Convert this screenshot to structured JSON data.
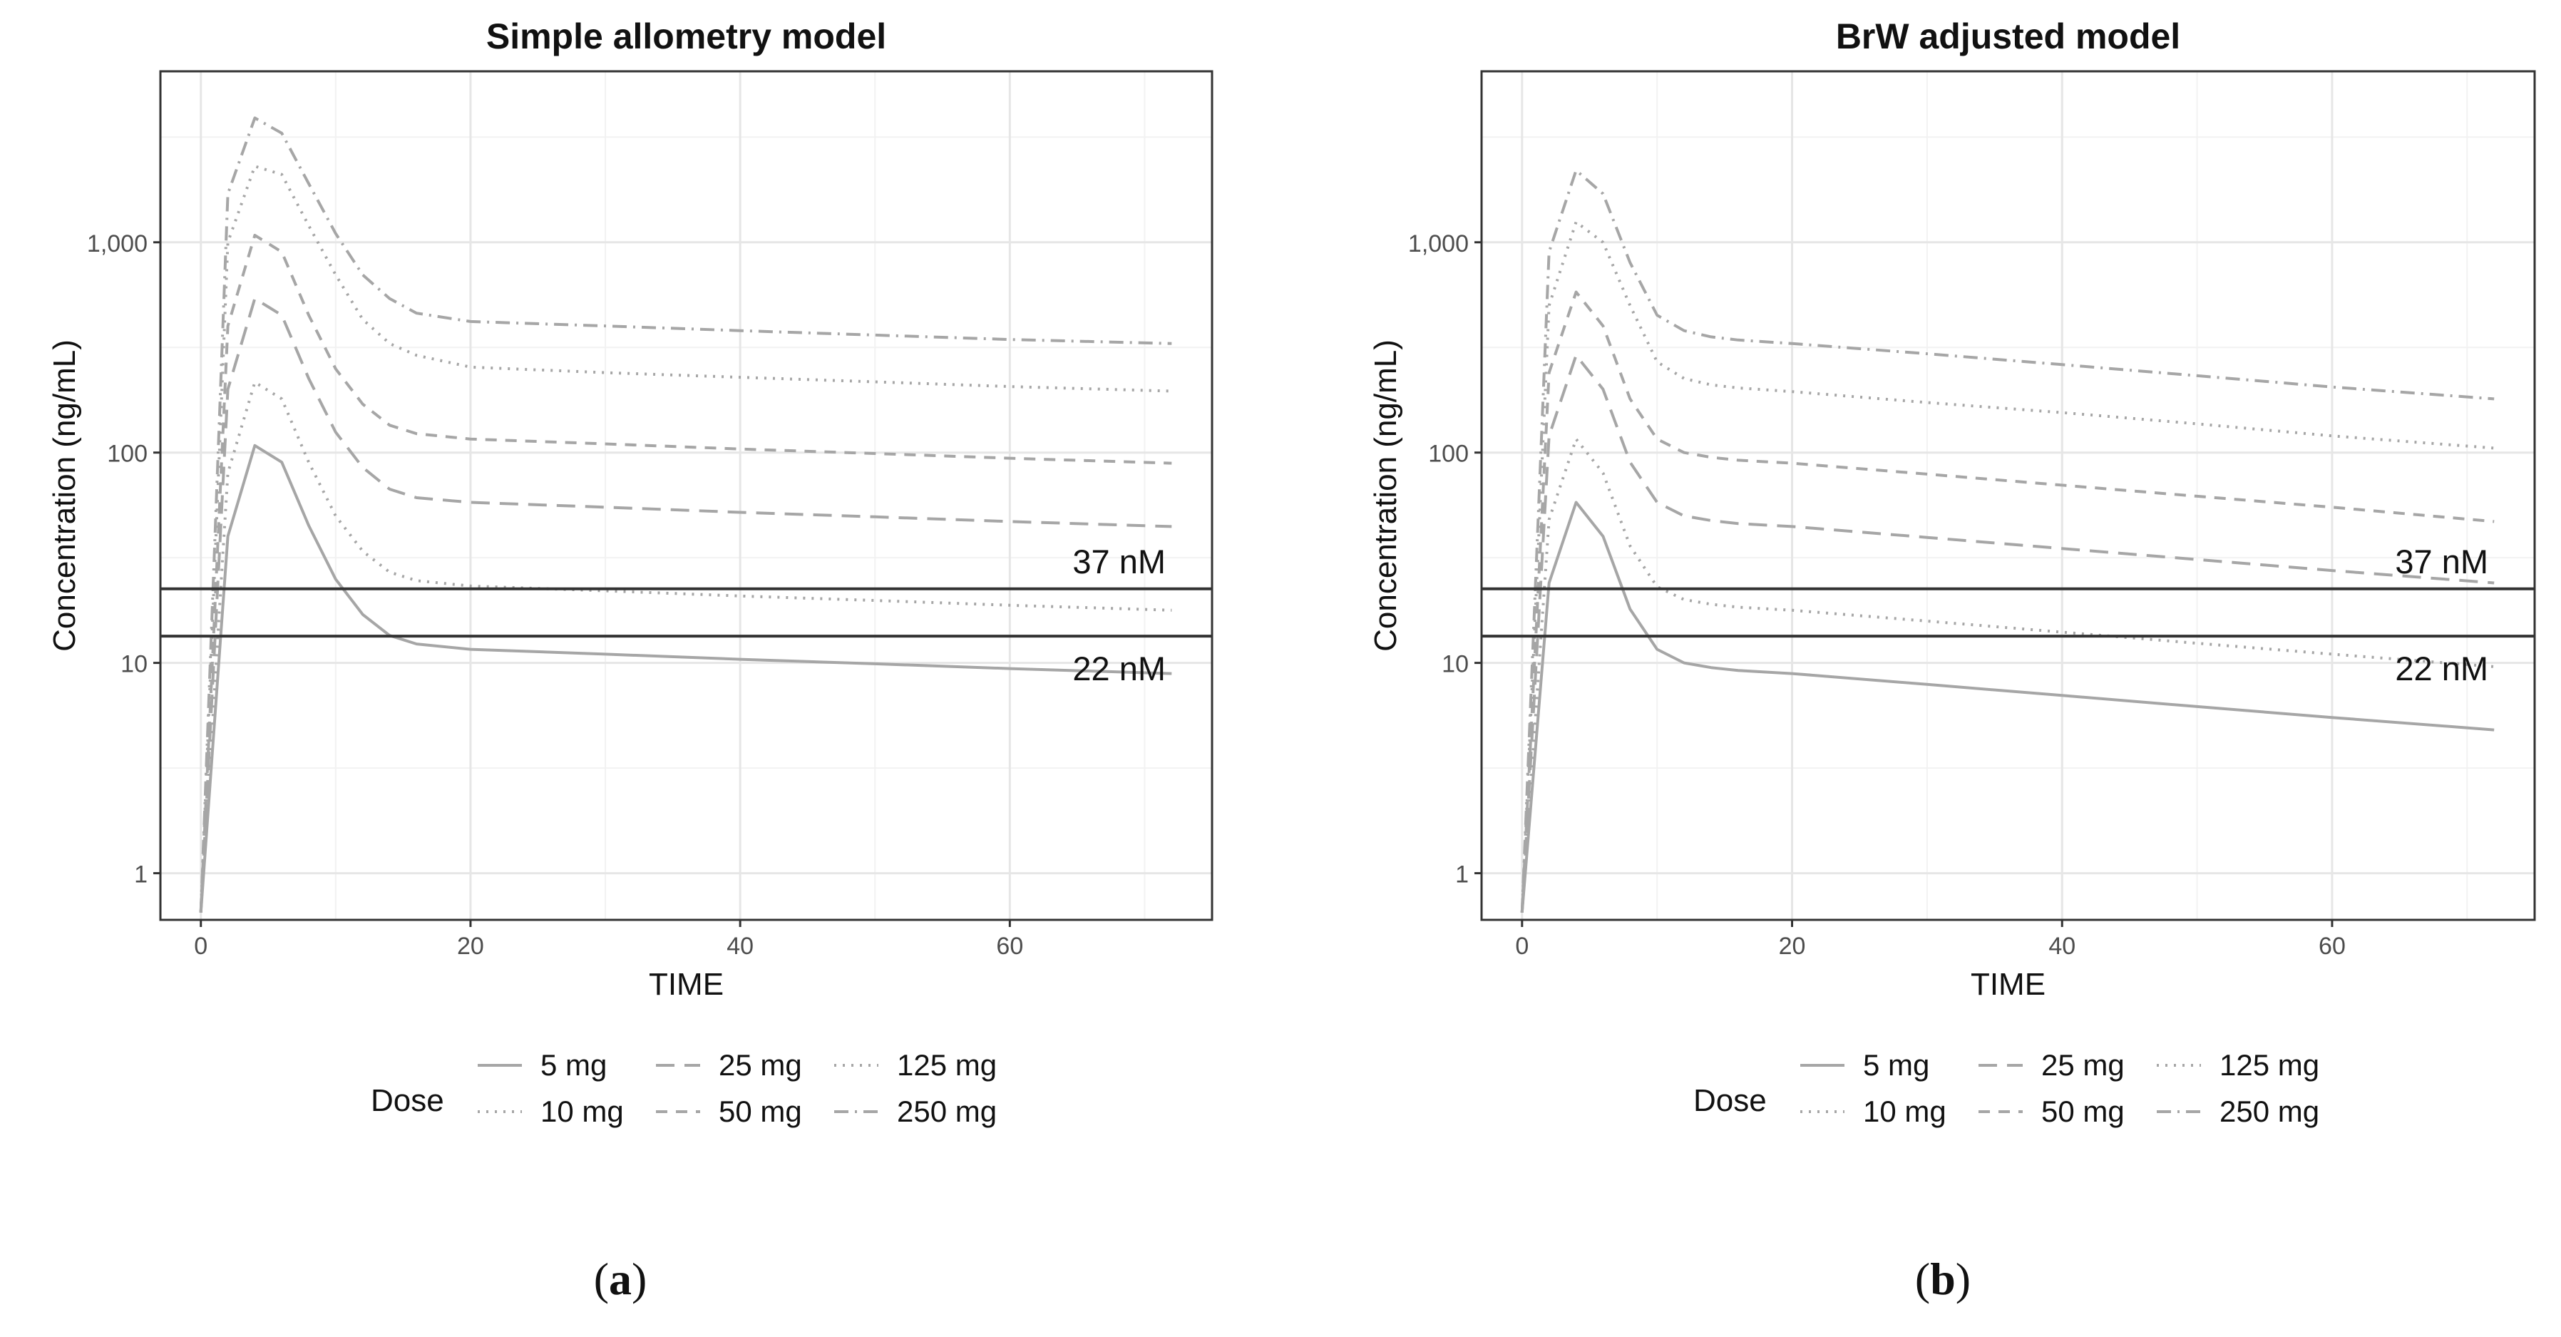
{
  "chart_data": [
    {
      "type": "line",
      "title": "Simple allometry model",
      "panel_label": [
        "(",
        "a",
        ")"
      ],
      "xlabel": "TIME",
      "ylabel": "Concentration (ng/mL)",
      "xlim": [
        -3,
        75
      ],
      "xticks": [
        0,
        20,
        40,
        60
      ],
      "xtick_labels": [
        "0",
        "20",
        "40",
        "60"
      ],
      "yscale": "log",
      "ylim": [
        0.6,
        6500
      ],
      "yticks": [
        1,
        10,
        100,
        1000
      ],
      "ytick_labels": [
        "1",
        "10",
        "100",
        "1,000"
      ],
      "grid": true,
      "reference_lines": [
        {
          "value": 22.5,
          "label": "37 nM"
        },
        {
          "value": 13.4,
          "label": "22 nM"
        }
      ],
      "legend": {
        "title": "Dose",
        "position": "bottom",
        "entries": [
          "5 mg",
          "10 mg",
          "25 mg",
          "50 mg",
          "125 mg",
          "250 mg"
        ]
      },
      "series": [
        {
          "name": "5 mg",
          "line": "solid",
          "x": [
            0,
            2,
            4,
            6,
            8,
            10,
            12,
            14,
            16,
            20,
            30,
            40,
            50,
            60,
            72
          ],
          "y": [
            0.65,
            40,
            108,
            90,
            45,
            25,
            17,
            13.5,
            12.3,
            11.6,
            11,
            10.4,
            9.9,
            9.4,
            8.9
          ]
        },
        {
          "name": "10 mg",
          "line": "dotted",
          "x": [
            0,
            2,
            4,
            6,
            8,
            10,
            12,
            14,
            16,
            20,
            30,
            40,
            50,
            60,
            72
          ],
          "y": [
            0.65,
            80,
            216,
            180,
            90,
            50,
            34,
            27,
            24.6,
            23.2,
            22,
            20.8,
            19.8,
            18.8,
            17.8
          ]
        },
        {
          "name": "25 mg",
          "line": "longdash",
          "x": [
            0,
            2,
            4,
            6,
            8,
            10,
            12,
            14,
            16,
            20,
            30,
            40,
            50,
            60,
            72
          ],
          "y": [
            0.65,
            200,
            540,
            450,
            225,
            125,
            85,
            67,
            61,
            58,
            55,
            52,
            49.5,
            47,
            44.5
          ]
        },
        {
          "name": "50 mg",
          "line": "dashed",
          "x": [
            0,
            2,
            4,
            6,
            8,
            10,
            12,
            14,
            16,
            20,
            30,
            40,
            50,
            60,
            72
          ],
          "y": [
            0.65,
            400,
            1080,
            900,
            450,
            250,
            170,
            135,
            123,
            116,
            110,
            104,
            99,
            94,
            89
          ]
        },
        {
          "name": "125 mg",
          "line": "dotted",
          "x": [
            0,
            2,
            4,
            6,
            8,
            10,
            12,
            14,
            16,
            20,
            30,
            40,
            50,
            60,
            72
          ],
          "y": [
            0.65,
            1000,
            2300,
            2100,
            1200,
            700,
            430,
            330,
            290,
            255,
            240,
            228,
            217,
            206,
            196
          ]
        },
        {
          "name": "250 mg",
          "line": "dotdash",
          "x": [
            0,
            2,
            4,
            6,
            8,
            10,
            12,
            14,
            16,
            20,
            30,
            40,
            50,
            60,
            72
          ],
          "y": [
            0.65,
            1700,
            3900,
            3300,
            1900,
            1100,
            700,
            540,
            460,
            420,
            400,
            380,
            362,
            345,
            330
          ]
        }
      ]
    },
    {
      "type": "line",
      "title": "BrW adjusted model",
      "panel_label": [
        "(",
        "b",
        ")"
      ],
      "xlabel": "TIME",
      "ylabel": "Concentration (ng/mL)",
      "xlim": [
        -3,
        75
      ],
      "xticks": [
        0,
        20,
        40,
        60
      ],
      "xtick_labels": [
        "0",
        "20",
        "40",
        "60"
      ],
      "yscale": "log",
      "ylim": [
        0.6,
        6500
      ],
      "yticks": [
        1,
        10,
        100,
        1000
      ],
      "ytick_labels": [
        "1",
        "10",
        "100",
        "1,000"
      ],
      "grid": true,
      "reference_lines": [
        {
          "value": 22.5,
          "label": "37 nM"
        },
        {
          "value": 13.4,
          "label": "22 nM"
        }
      ],
      "legend": {
        "title": "Dose",
        "position": "bottom",
        "entries": [
          "5 mg",
          "10 mg",
          "25 mg",
          "50 mg",
          "125 mg",
          "250 mg"
        ]
      },
      "series": [
        {
          "name": "5 mg",
          "line": "solid",
          "x": [
            0,
            2,
            4,
            6,
            8,
            10,
            12,
            14,
            16,
            20,
            30,
            40,
            50,
            60,
            72
          ],
          "y": [
            0.65,
            24,
            58,
            40,
            18,
            11.6,
            10,
            9.5,
            9.2,
            8.9,
            7.9,
            7,
            6.2,
            5.5,
            4.8
          ]
        },
        {
          "name": "10 mg",
          "line": "dotted",
          "x": [
            0,
            2,
            4,
            6,
            8,
            10,
            12,
            14,
            16,
            20,
            30,
            40,
            50,
            60,
            72
          ],
          "y": [
            0.65,
            48,
            116,
            80,
            36,
            23,
            20,
            19,
            18.4,
            17.8,
            15.8,
            14,
            12.4,
            11,
            9.6
          ]
        },
        {
          "name": "25 mg",
          "line": "longdash",
          "x": [
            0,
            2,
            4,
            6,
            8,
            10,
            12,
            14,
            16,
            20,
            30,
            40,
            50,
            60,
            72
          ],
          "y": [
            0.65,
            120,
            290,
            200,
            90,
            58,
            50,
            47.5,
            46,
            44.5,
            39.5,
            35,
            31,
            27.5,
            24
          ]
        },
        {
          "name": "50 mg",
          "line": "dashed",
          "x": [
            0,
            2,
            4,
            6,
            8,
            10,
            12,
            14,
            16,
            20,
            30,
            40,
            50,
            60,
            72
          ],
          "y": [
            0.65,
            240,
            580,
            400,
            180,
            116,
            100,
            95,
            92,
            89,
            79,
            70,
            62,
            55,
            47
          ]
        },
        {
          "name": "125 mg",
          "line": "dotted",
          "x": [
            0,
            2,
            4,
            6,
            8,
            10,
            12,
            14,
            16,
            20,
            30,
            40,
            50,
            60,
            72
          ],
          "y": [
            0.65,
            500,
            1250,
            1000,
            500,
            270,
            225,
            210,
            203,
            195,
            173,
            155,
            137,
            120,
            105
          ]
        },
        {
          "name": "250 mg",
          "line": "dotdash",
          "x": [
            0,
            2,
            4,
            6,
            8,
            10,
            12,
            14,
            16,
            20,
            30,
            40,
            50,
            60,
            72
          ],
          "y": [
            0.65,
            900,
            2200,
            1700,
            800,
            450,
            380,
            355,
            343,
            330,
            295,
            262,
            232,
            205,
            180
          ]
        }
      ]
    }
  ]
}
